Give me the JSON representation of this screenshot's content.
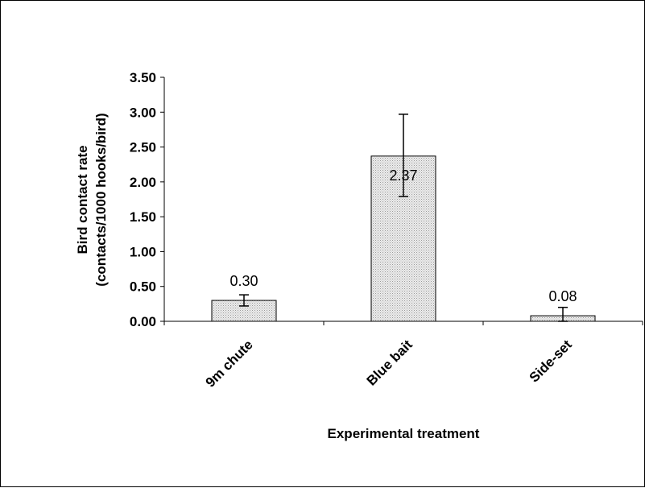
{
  "chart_data": {
    "type": "bar",
    "categories": [
      "9m chute",
      "Blue bait",
      "Side-set"
    ],
    "values": [
      0.3,
      2.37,
      0.08
    ],
    "data_labels": [
      "0.30",
      "2.37",
      "0.08"
    ],
    "error_bars": [
      {
        "low": 0.22,
        "high": 0.38
      },
      {
        "low": 1.79,
        "high": 2.97
      },
      {
        "low": 0.0,
        "high": 0.2
      }
    ],
    "title": "",
    "xlabel": "Experimental  treatment",
    "ylabel_lines": [
      "Bird contact rate",
      "(contacts/1000 hooks/bird)"
    ],
    "ylim": [
      0,
      3.5
    ],
    "yticks": [
      0,
      0.5,
      1.0,
      1.5,
      2.0,
      2.5,
      3.0,
      3.5
    ],
    "ytick_labels": [
      "0.00",
      "0.50",
      "1.00",
      "1.50",
      "2.00",
      "2.50",
      "3.00",
      "3.50"
    ],
    "grid": false,
    "legend": "none",
    "bar_fill": "#d9d9d9",
    "bar_stroke": "#000000"
  }
}
